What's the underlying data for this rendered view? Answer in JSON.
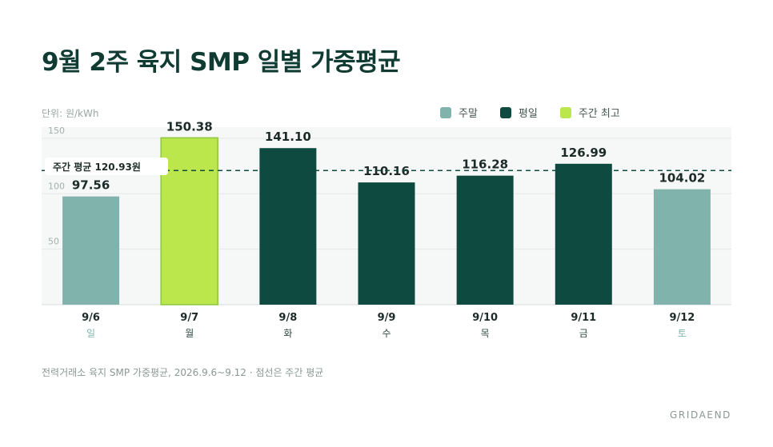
{
  "title": "9월 2주 육지 SMP 일별 가중평균",
  "unit_label": "단위: 원/kWh",
  "legend": [
    {
      "label": "주말",
      "color": "#7fb3ac"
    },
    {
      "label": "평일",
      "color": "#0f4a40"
    },
    {
      "label": "주간 최고",
      "color": "#bce74c"
    }
  ],
  "avg_label": "주간 평균 120.93원",
  "source": "전력거래소 육지 SMP 가중평균, 2026.9.6~9.12 · 점선은 주간 평균",
  "brand": "GRIDAEND",
  "chart_data": {
    "type": "bar",
    "categories": [
      "9/6",
      "9/7",
      "9/8",
      "9/9",
      "9/10",
      "9/11",
      "9/12"
    ],
    "weekdays": [
      "일",
      "월",
      "화",
      "수",
      "목",
      "금",
      "토"
    ],
    "values": [
      97.56,
      150.38,
      141.1,
      110.16,
      116.28,
      126.99,
      104.02
    ],
    "value_labels": [
      "97.56",
      "150.38",
      "141.10",
      "110.16",
      "116.28",
      "126.99",
      "104.02"
    ],
    "bar_kind": [
      "weekend",
      "peak",
      "weekday",
      "weekday",
      "weekday",
      "weekday",
      "weekend"
    ],
    "average": 120.93,
    "yticks": [
      50,
      100,
      150
    ],
    "ylim": [
      0,
      160
    ],
    "colors": {
      "weekend": "#7fb3ac",
      "weekday": "#0f4a40",
      "peak": "#bce74c",
      "peak_border": "#8ec63f"
    }
  }
}
